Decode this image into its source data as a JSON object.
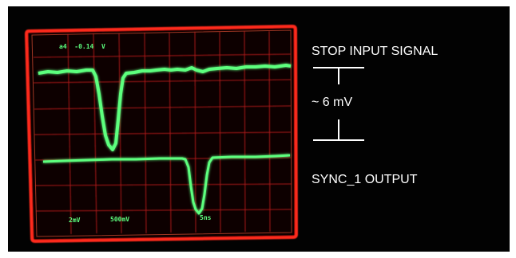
{
  "scope": {
    "readout": "a4  -0.14  V",
    "ch1_scale": "2mV",
    "ch2_scale": "500mV",
    "timebase": "5ns",
    "trace_color": "#5dff7e",
    "grid_color": "#c81f1f",
    "bezel_color": "#ff2a1f"
  },
  "annotations": {
    "stop_signal": "STOP INPUT SIGNAL",
    "amplitude": "~ 6 mV",
    "sync_output": "SYNC_1 OUTPUT"
  }
}
